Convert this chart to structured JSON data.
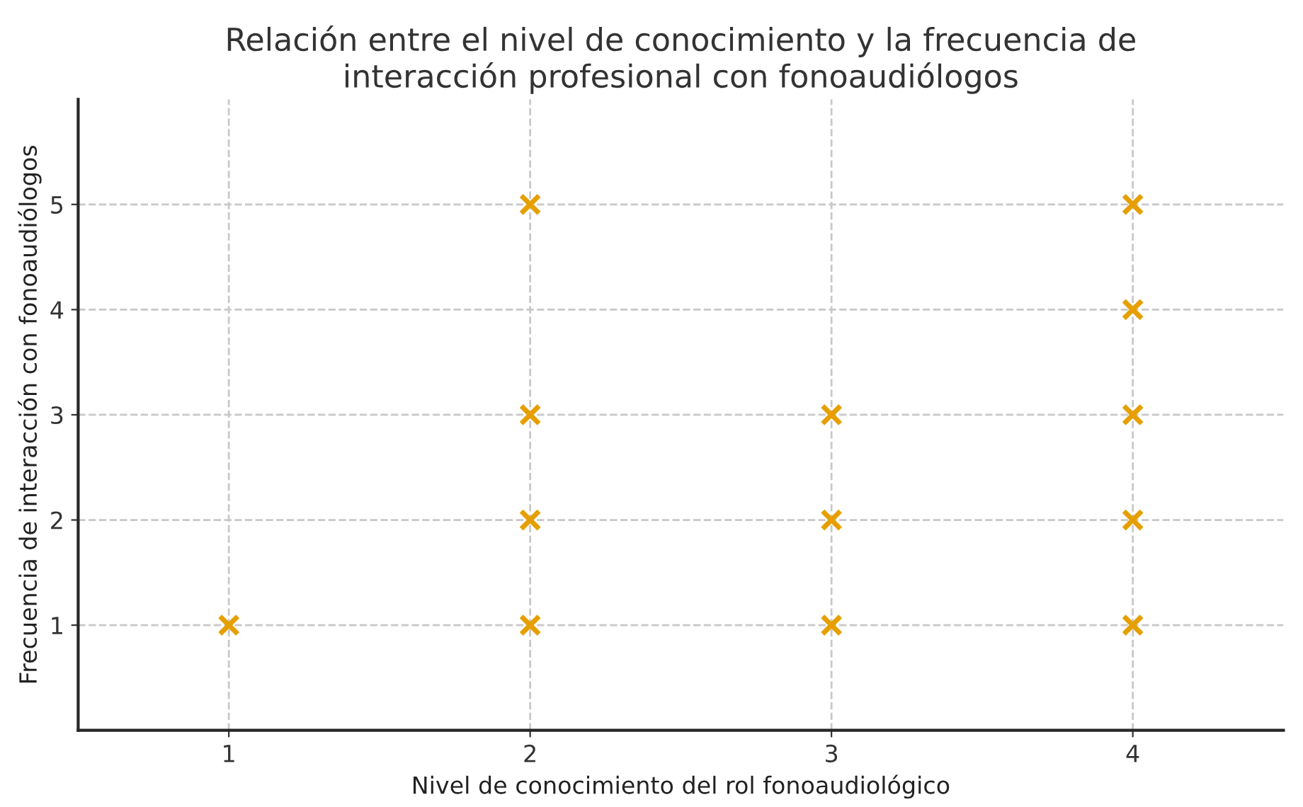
{
  "chart_data": {
    "type": "scatter",
    "title": "Relación entre el nivel de conocimiento y la frecuencia de\ninteracción profesional con fonoaudiólogos",
    "xlabel": "Nivel de conocimiento del rol fonoaudiológico",
    "ylabel": "Frecuencia de interacción con fonoaudiólogos",
    "x": [
      1,
      2,
      2,
      2,
      2,
      3,
      3,
      3,
      4,
      4,
      4,
      4,
      4
    ],
    "series": [
      {
        "color": "#e69f00",
        "values": [
          1,
          5,
          3,
          2,
          1,
          3,
          2,
          1,
          5,
          4,
          3,
          2,
          1
        ]
      }
    ],
    "xlim": [
      0.5,
      4.5
    ],
    "xticks": [
      1,
      2,
      3,
      4
    ],
    "ylim": [
      0,
      6
    ],
    "yticks": [
      1,
      2,
      3,
      4,
      5
    ],
    "grid": true,
    "marker": "cross"
  }
}
